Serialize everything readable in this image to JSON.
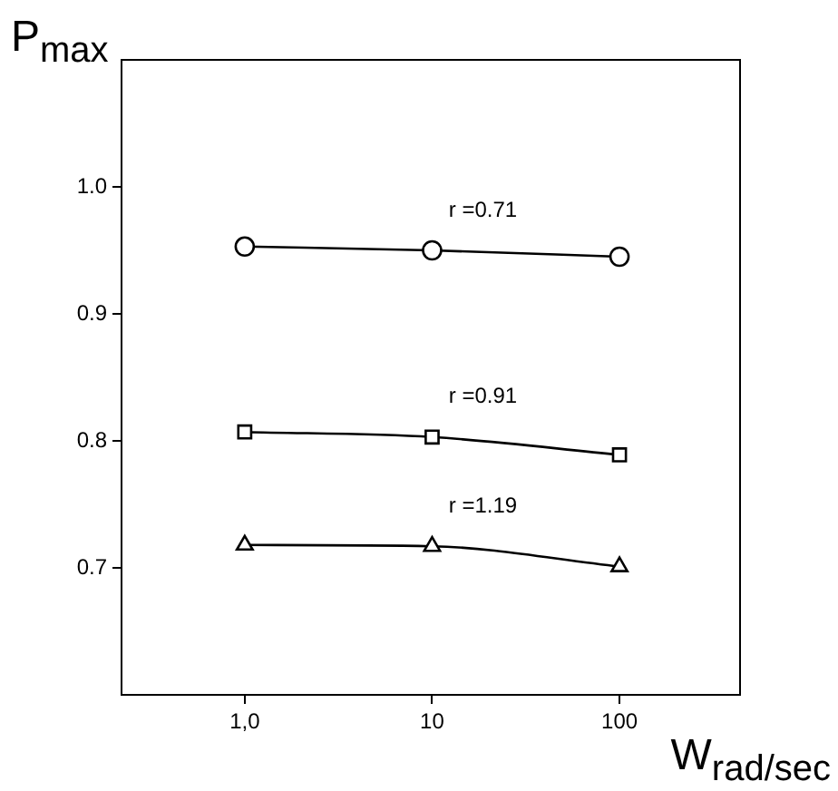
{
  "chart_data": {
    "type": "line",
    "xlabel": "W$_{rad/sec}$",
    "ylabel": "P$_{max}$",
    "x": [
      1,
      10,
      100
    ],
    "series": [
      {
        "color": "#000000",
        "marker": "circle",
        "values": [
          0.953,
          0.95,
          0.945
        ]
      },
      {
        "color": "#000000",
        "marker": "square",
        "values": [
          0.807,
          0.803,
          0.789
        ]
      },
      {
        "color": "#000000",
        "marker": "triangle",
        "values": [
          0.718,
          0.717,
          0.701
        ]
      }
    ],
    "log": "x",
    "xlim": [
      0.22,
      440
    ],
    "xticks": [
      {
        "value": 1,
        "label": "1,0"
      },
      10,
      100
    ],
    "ylim": [
      0.6,
      1.1
    ],
    "yticks": [
      0.7,
      0.8,
      0.9,
      {
        "value": 1,
        "label": "1.0"
      }
    ],
    "grid": false,
    "legend": false,
    "line_style": "solid",
    "annotations": [
      "r =0.71",
      "r =0.91",
      "r =1.19"
    ]
  }
}
